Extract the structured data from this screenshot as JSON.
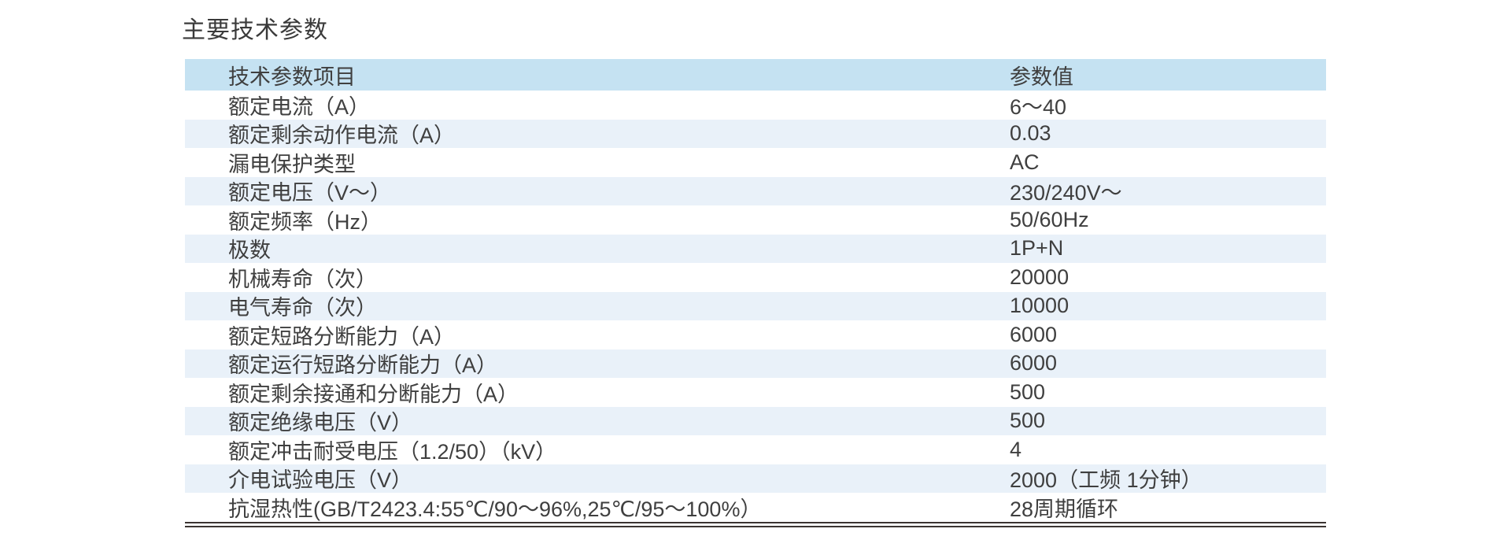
{
  "title": "主要技术参数",
  "table": {
    "columns": [
      "技术参数项目",
      "参数值"
    ],
    "rows": [
      {
        "label": "额定电流（A）",
        "value": "6～40"
      },
      {
        "label": "额定剩余动作电流（A）",
        "value": "0.03"
      },
      {
        "label": "漏电保护类型",
        "value": "AC"
      },
      {
        "label": "额定电压（V～）",
        "value": "230/240V～"
      },
      {
        "label": "额定频率（Hz）",
        "value": "50/60Hz"
      },
      {
        "label": "极数",
        "value": "1P+N"
      },
      {
        "label": "机械寿命（次）",
        "value": "20000"
      },
      {
        "label": "电气寿命（次）",
        "value": "10000"
      },
      {
        "label": "额定短路分断能力（A）",
        "value": "6000"
      },
      {
        "label": "额定运行短路分断能力（A）",
        "value": "6000"
      },
      {
        "label": "额定剩余接通和分断能力（A）",
        "value": "500"
      },
      {
        "label": "额定绝缘电压（V）",
        "value": "500"
      },
      {
        "label": "额定冲击耐受电压（1.2/50）（kV）",
        "value": "4"
      },
      {
        "label": "介电试验电压（V）",
        "value": "2000（工频 1分钟）"
      },
      {
        "label": "抗湿热性(GB/T2423.4:55℃/90～96%,25℃/95～100%）",
        "value": "28周期循环"
      }
    ]
  },
  "colors": {
    "header_row_bg": "#c5e2f2",
    "alt_row_bg": "#e9f1f9",
    "row_bg": "#ffffff",
    "text": "#3f3f3f",
    "bottom_rule": "#3b3432"
  }
}
